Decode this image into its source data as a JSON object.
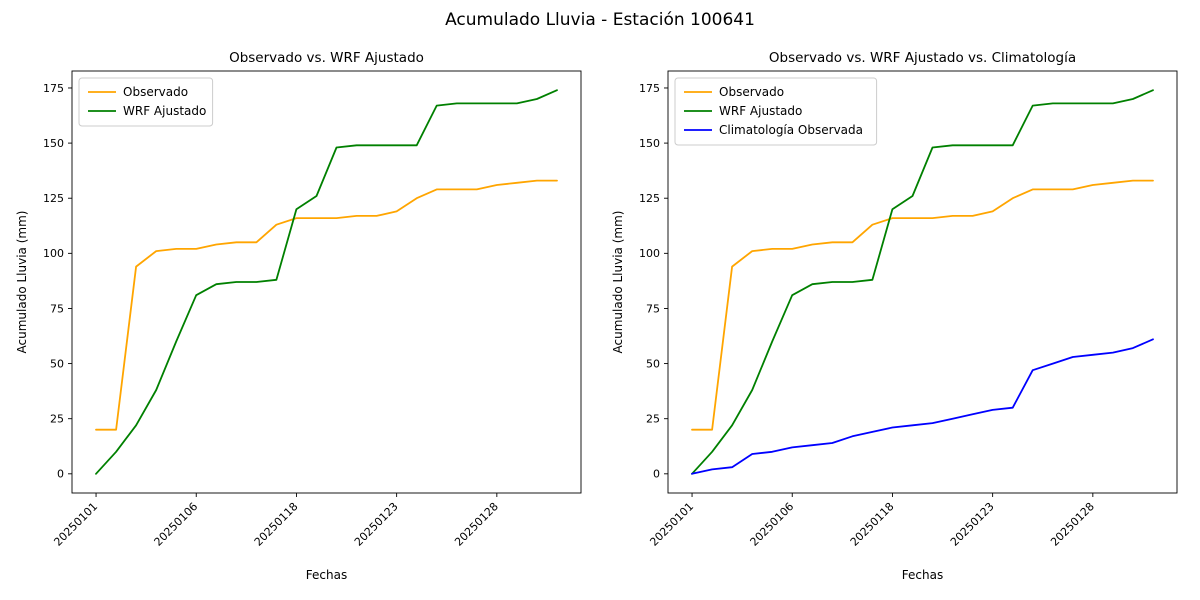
{
  "figure": {
    "suptitle": "Acumulado Lluvia - Estación 100641"
  },
  "chart_data": [
    {
      "type": "line",
      "title": "Observado vs. WRF Ajustado",
      "xlabel": "Fechas",
      "ylabel": "Acumulado Lluvia (mm)",
      "x_count": 24,
      "xtick_positions": [
        0,
        5,
        10,
        15,
        20
      ],
      "xtick_labels": [
        "20250101",
        "20250106",
        "20250118",
        "20250123",
        "20250128"
      ],
      "ytick_values": [
        0,
        25,
        50,
        75,
        100,
        125,
        150,
        175
      ],
      "xlim": [
        -1.2,
        24.2
      ],
      "ylim": [
        -8.7,
        182.7
      ],
      "grid": false,
      "legend_position": "upper-left",
      "series": [
        {
          "name": "Observado",
          "color": "#ffa500",
          "values": [
            20,
            20,
            94,
            101,
            102,
            102,
            104,
            105,
            105,
            113,
            116,
            116,
            116,
            117,
            117,
            119,
            125,
            129,
            129,
            129,
            131,
            132,
            133,
            133
          ]
        },
        {
          "name": "WRF Ajustado",
          "color": "#008000",
          "values": [
            0,
            10,
            22,
            38,
            60,
            81,
            86,
            87,
            87,
            88,
            120,
            126,
            148,
            149,
            149,
            149,
            149,
            167,
            168,
            168,
            168,
            168,
            170,
            174
          ]
        }
      ]
    },
    {
      "type": "line",
      "title": "Observado vs. WRF Ajustado vs. Climatología",
      "xlabel": "Fechas",
      "ylabel": "Acumulado Lluvia (mm)",
      "x_count": 24,
      "xtick_positions": [
        0,
        5,
        10,
        15,
        20
      ],
      "xtick_labels": [
        "20250101",
        "20250106",
        "20250118",
        "20250123",
        "20250128"
      ],
      "ytick_values": [
        0,
        25,
        50,
        75,
        100,
        125,
        150,
        175
      ],
      "xlim": [
        -1.2,
        24.2
      ],
      "ylim": [
        -8.7,
        182.7
      ],
      "grid": false,
      "legend_position": "upper-left",
      "series": [
        {
          "name": "Observado",
          "color": "#ffa500",
          "values": [
            20,
            20,
            94,
            101,
            102,
            102,
            104,
            105,
            105,
            113,
            116,
            116,
            116,
            117,
            117,
            119,
            125,
            129,
            129,
            129,
            131,
            132,
            133,
            133
          ]
        },
        {
          "name": "WRF Ajustado",
          "color": "#008000",
          "values": [
            0,
            10,
            22,
            38,
            60,
            81,
            86,
            87,
            87,
            88,
            120,
            126,
            148,
            149,
            149,
            149,
            149,
            167,
            168,
            168,
            168,
            168,
            170,
            174
          ]
        },
        {
          "name": "Climatología Observada",
          "color": "#0000ff",
          "values": [
            0,
            2,
            3,
            9,
            10,
            12,
            13,
            14,
            17,
            19,
            21,
            22,
            23,
            25,
            27,
            29,
            30,
            47,
            50,
            53,
            54,
            55,
            57,
            61
          ]
        }
      ]
    }
  ]
}
